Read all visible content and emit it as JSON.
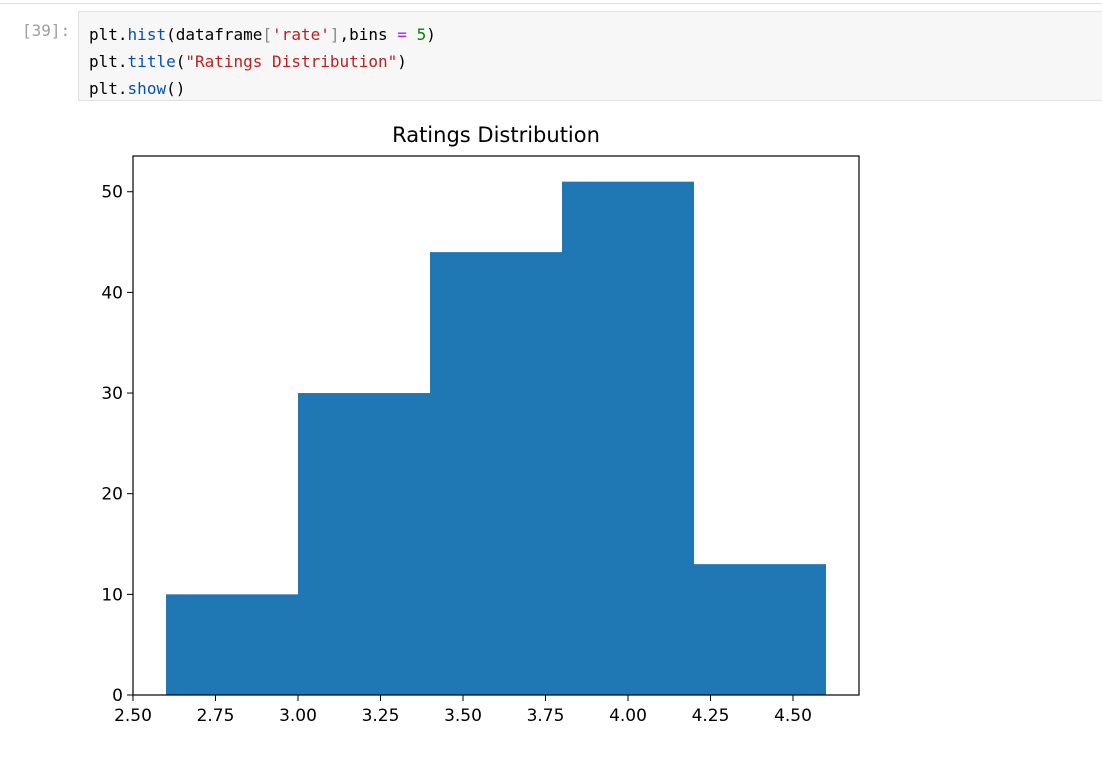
{
  "cell": {
    "prompt": "[39]:",
    "code_lines": [
      [
        {
          "t": "plt",
          "c": "c-builtin"
        },
        {
          "t": ".",
          "c": "c-punc"
        },
        {
          "t": "hist",
          "c": "c-attr"
        },
        {
          "t": "(dataframe",
          "c": "c-punc"
        },
        {
          "t": "[",
          "c": "c-bracket"
        },
        {
          "t": "'rate'",
          "c": "c-str"
        },
        {
          "t": "]",
          "c": "c-bracket"
        },
        {
          "t": ",bins ",
          "c": "c-punc"
        },
        {
          "t": "=",
          "c": "c-op"
        },
        {
          "t": " ",
          "c": "c-punc"
        },
        {
          "t": "5",
          "c": "c-num"
        },
        {
          "t": ")",
          "c": "c-punc"
        }
      ],
      [
        {
          "t": "plt",
          "c": "c-builtin"
        },
        {
          "t": ".",
          "c": "c-punc"
        },
        {
          "t": "title",
          "c": "c-attr"
        },
        {
          "t": "(",
          "c": "c-punc"
        },
        {
          "t": "\"Ratings Distribution\"",
          "c": "c-str"
        },
        {
          "t": ")",
          "c": "c-punc"
        }
      ],
      [
        {
          "t": "plt",
          "c": "c-builtin"
        },
        {
          "t": ".",
          "c": "c-punc"
        },
        {
          "t": "show",
          "c": "c-attr"
        },
        {
          "t": "()",
          "c": "c-punc"
        }
      ]
    ]
  },
  "chart_data": {
    "type": "bar",
    "title": "Ratings Distribution",
    "xlabel": "",
    "ylabel": "",
    "bins": [
      {
        "x0": 2.6,
        "x1": 3.0,
        "count": 10
      },
      {
        "x0": 3.0,
        "x1": 3.4,
        "count": 30
      },
      {
        "x0": 3.4,
        "x1": 3.8,
        "count": 44
      },
      {
        "x0": 3.8,
        "x1": 4.2,
        "count": 51
      },
      {
        "x0": 4.2,
        "x1": 4.6,
        "count": 13
      }
    ],
    "xlim": [
      2.5,
      4.7
    ],
    "ylim": [
      0,
      53.55
    ],
    "xticks": [
      "2.50",
      "2.75",
      "3.00",
      "3.25",
      "3.50",
      "3.75",
      "4.00",
      "4.25",
      "4.50"
    ],
    "xtick_values": [
      2.5,
      2.75,
      3.0,
      3.25,
      3.5,
      3.75,
      4.0,
      4.25,
      4.5
    ],
    "yticks": [
      "0",
      "10",
      "20",
      "30",
      "40",
      "50"
    ],
    "ytick_values": [
      0,
      10,
      20,
      30,
      40,
      50
    ],
    "bar_color": "#1f77b4",
    "grid": false,
    "legend": "none"
  }
}
